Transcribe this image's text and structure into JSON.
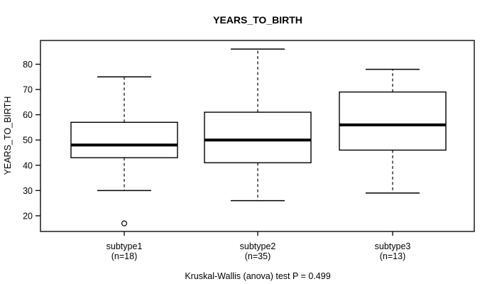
{
  "chart_data": {
    "type": "boxplot",
    "title": "YEARS_TO_BIRTH",
    "ylabel": "YEARS_TO_BIRTH",
    "xlabel": "",
    "yticks": [
      20,
      30,
      40,
      50,
      60,
      70,
      80
    ],
    "ylim": [
      13.8,
      89.4
    ],
    "grid": false,
    "legend": "none",
    "caption": "Kruskal-Wallis (anova) test P = 0.499",
    "kruskal_wallis_p": 0.499,
    "groups": [
      {
        "label": "subtype1",
        "sublabel": "(n=18)",
        "n": 18,
        "whisker_low": 30,
        "q1": 43,
        "median": 48,
        "q3": 57,
        "whisker_high": 75,
        "outliers": [
          17
        ]
      },
      {
        "label": "subtype2",
        "sublabel": "(n=35)",
        "n": 35,
        "whisker_low": 26,
        "q1": 41,
        "median": 50,
        "q3": 61,
        "whisker_high": 86,
        "outliers": []
      },
      {
        "label": "subtype3",
        "sublabel": "(n=13)",
        "n": 13,
        "whisker_low": 29,
        "q1": 46,
        "median": 56,
        "q3": 69,
        "whisker_high": 78,
        "outliers": []
      }
    ]
  },
  "colors": {
    "stroke": "#000000",
    "plot_border": "#2a2a2a",
    "box_fill": "#ffffff",
    "background": "#ffffff"
  }
}
